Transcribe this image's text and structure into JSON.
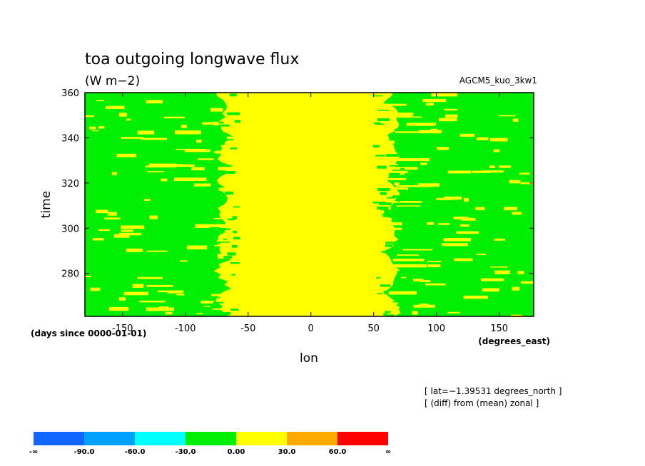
{
  "chart_data": {
    "type": "heatmap",
    "title": "toa outgoing longwave flux",
    "units": "(W m−2)",
    "experiment": "AGCM5_kuo_3kw1",
    "xlabel": "lon",
    "ylabel": "time",
    "x_units": "(degrees_east)",
    "y_units": "(days since 0000-01-01)",
    "xlim": [
      -180,
      177.5
    ],
    "ylim": [
      261,
      360
    ],
    "xticks": [
      -150,
      -100,
      -50,
      0,
      50,
      100,
      150
    ],
    "yticks": [
      280,
      300,
      320,
      340,
      360
    ],
    "notes": [
      "[ lat=−1.39531 degrees_north ]",
      "[ (diff) from (mean) zonal ]"
    ],
    "colorbar": {
      "labels": [
        "-∞",
        "-90.0",
        "-60.0",
        "-30.0",
        "0.00",
        "30.0",
        "60.0",
        "∞"
      ],
      "colors": [
        "#1166ff",
        "#00a0ff",
        "#00ffff",
        "#00ee00",
        "#ffff00",
        "#ffaa00",
        "#ff0000"
      ]
    },
    "pattern": {
      "background_bin_color": "#00ee00",
      "background_bin": "-30.0 to 0.00",
      "band_bin_color": "#ffff00",
      "band_bin": "0.00 to 30.0",
      "band_lon_range": [
        -55,
        50
      ]
    }
  }
}
